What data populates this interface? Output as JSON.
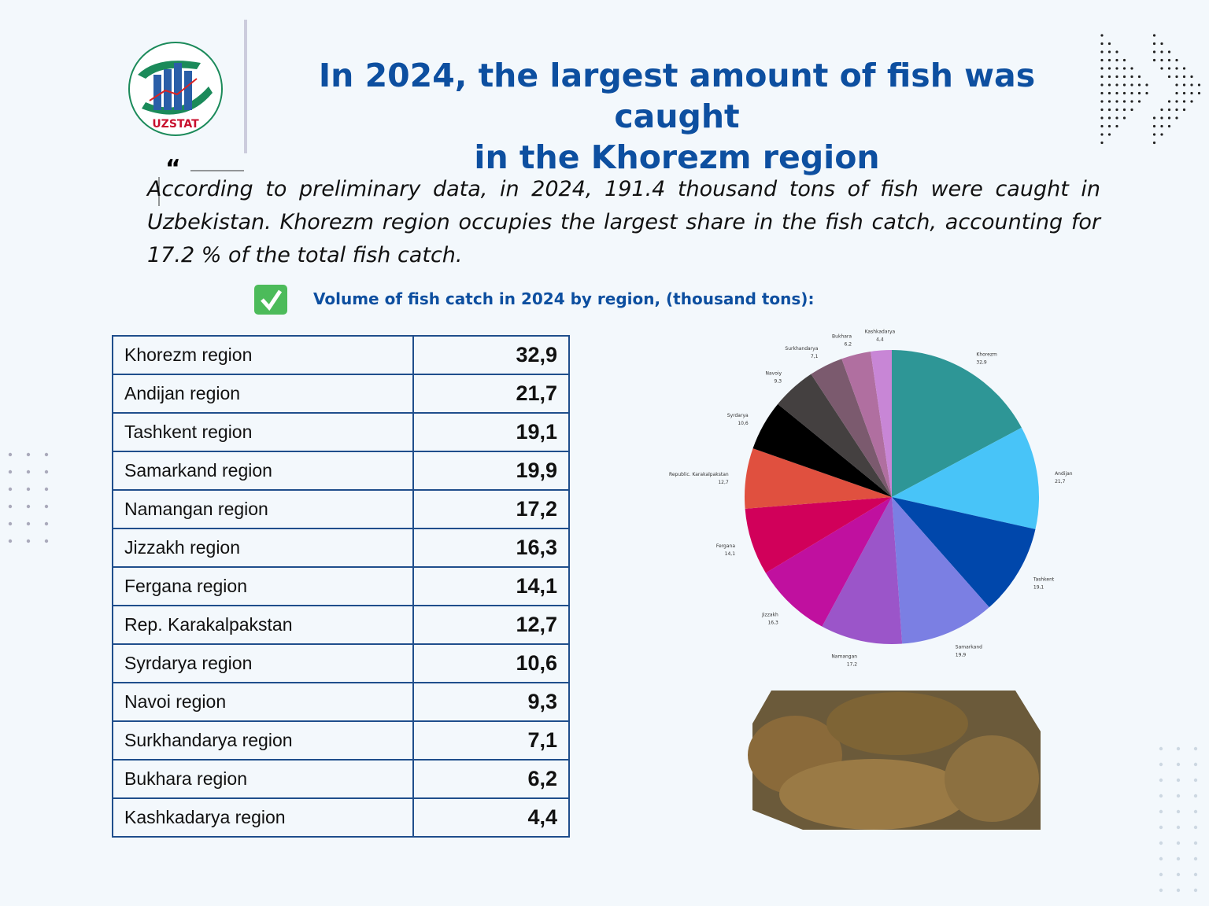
{
  "header": {
    "logo_text": "UZSTAT",
    "title": [
      "In 2024, the largest amount of fish was caught",
      "in the Khorezm region"
    ]
  },
  "intro": "According to preliminary data, in 2024, 191.4 thousand tons of fish were caught in Uzbekistan. Khorezm region occupies the largest share in the fish catch, accounting for 17.2 % of the total fish catch.",
  "subtitle": "Volume of fish catch in 2024 by region, (thousand tons):",
  "table": {
    "rows": [
      [
        "Khorezm region",
        "32,9"
      ],
      [
        "Andijan region",
        "21,7"
      ],
      [
        "Tashkent region",
        "19,1"
      ],
      [
        "Samarkand region",
        "19,9"
      ],
      [
        "Namangan region",
        "17,2"
      ],
      [
        "Jizzakh region",
        "16,3"
      ],
      [
        "Fergana region",
        "14,1"
      ],
      [
        "Rep. Karakalpakstan",
        "12,7"
      ],
      [
        "Syrdarya region",
        "10,6"
      ],
      [
        "Navoi region",
        "9,3"
      ],
      [
        "Surkhandarya region",
        "7,1"
      ],
      [
        "Bukhara region",
        "6,2"
      ],
      [
        "Kashkadarya region",
        "4,4"
      ]
    ]
  },
  "chart_data": {
    "type": "pie",
    "categories": [
      "Khorezm",
      "Andijan",
      "Tashkent",
      "Samarkand",
      "Namangan",
      "Jizzakh",
      "Fergana",
      "Republic. Karakalpakstan",
      "Syrdarya",
      "Navoiy",
      "Surkhandarya",
      "Bukhara",
      "Kashkadarya"
    ],
    "values": [
      32.9,
      21.7,
      19.1,
      19.9,
      17.2,
      16.3,
      14.1,
      12.7,
      10.6,
      9.3,
      7.1,
      6.2,
      4.4
    ],
    "value_labels": [
      "32,9",
      "21,7",
      "19,1",
      "19,9",
      "17,2",
      "16,3",
      "14,1",
      "12,7",
      "10,6",
      "9,3",
      "7,1",
      "6,2",
      "4,4"
    ],
    "colors": [
      "#2e9696",
      "#48c4f8",
      "#0047ab",
      "#7b7fe3",
      "#9b55c9",
      "#c0109f",
      "#d1005a",
      "#e0503f",
      "#000000",
      "#444040",
      "#7b5a6e",
      "#b06fa0",
      "#c886d6"
    ]
  }
}
